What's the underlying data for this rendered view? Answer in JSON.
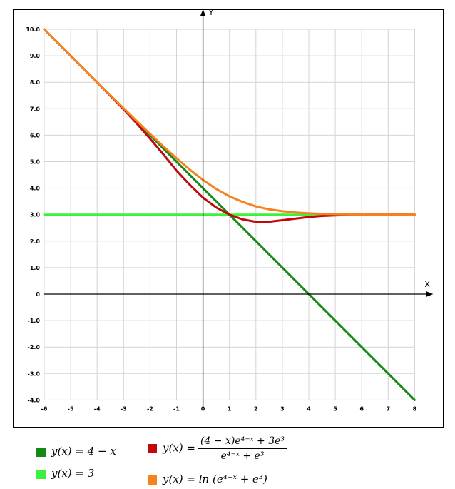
{
  "chart_data": {
    "type": "line",
    "xlabel": "X",
    "ylabel": "Y",
    "xlim": [
      -6,
      8
    ],
    "ylim": [
      -4,
      10
    ],
    "x_ticks": [
      "-6",
      "-5",
      "-4",
      "-3",
      "-2",
      "-1",
      "0",
      "1",
      "2",
      "3",
      "4",
      "5",
      "6",
      "7",
      "8"
    ],
    "y_ticks": [
      "-4.0",
      "-3.0",
      "-2.0",
      "-1.0",
      "0",
      "1.0",
      "2.0",
      "3.0",
      "4.0",
      "5.0",
      "6.0",
      "7.0",
      "8.0",
      "9.0",
      "10.0"
    ],
    "grid": true,
    "series": [
      {
        "name": "y(x) = 4 − x",
        "color": "#138a13",
        "x": [
          -6,
          8
        ],
        "y": [
          10,
          -4
        ]
      },
      {
        "name": "y(x) = 3",
        "color": "#3ef03e",
        "x": [
          -6,
          8
        ],
        "y": [
          3,
          3
        ]
      },
      {
        "name": "y(x) = ((4 − x)e^(4−x) + 3e^3) / (e^(4−x) + e^3)",
        "color": "#c00a0a",
        "x": [
          -6,
          -5,
          -4,
          -3,
          -2.5,
          -2,
          -1.5,
          -1,
          -0.5,
          0,
          0.5,
          1,
          1.5,
          2,
          2.5,
          3,
          3.5,
          4,
          4.5,
          5,
          5.5,
          6,
          6.5,
          7,
          7.5,
          8
        ],
        "y": [
          10,
          9,
          8,
          6.98,
          6.44,
          5.87,
          5.28,
          4.66,
          4.13,
          3.64,
          3.27,
          3,
          2.82,
          2.73,
          2.73,
          2.79,
          2.85,
          2.91,
          2.95,
          2.97,
          2.99,
          2.995,
          2.998,
          2.999,
          3,
          3
        ]
      },
      {
        "name": "y(x) = ln(e^(4−x) + e^3)",
        "color": "#f5821f",
        "x": [
          -6,
          -5,
          -4,
          -3,
          -2.5,
          -2,
          -1.5,
          -1,
          -0.5,
          0,
          0.5,
          1,
          1.5,
          2,
          2.5,
          3,
          3.5,
          4,
          4.5,
          5,
          5.5,
          6,
          6.5,
          7,
          7.5,
          8
        ],
        "y": [
          10,
          9,
          8,
          7.02,
          6.53,
          6.05,
          5.58,
          5.13,
          4.7,
          4.31,
          3.97,
          3.69,
          3.48,
          3.31,
          3.2,
          3.13,
          3.08,
          3.05,
          3.03,
          3.02,
          3.01,
          3.007,
          3.004,
          3.002,
          3.001,
          3.001
        ]
      }
    ]
  },
  "legend": {
    "item1": "y(x) = 4 − x",
    "item2": "y(x) = 3",
    "item3_lhs": "y(x) =",
    "item3_num": "(4 − x)e⁴⁻ˣ + 3e³",
    "item3_den": "e⁴⁻ˣ + e³",
    "item4": "y(x) = ln (e⁴⁻ˣ + e³)"
  }
}
